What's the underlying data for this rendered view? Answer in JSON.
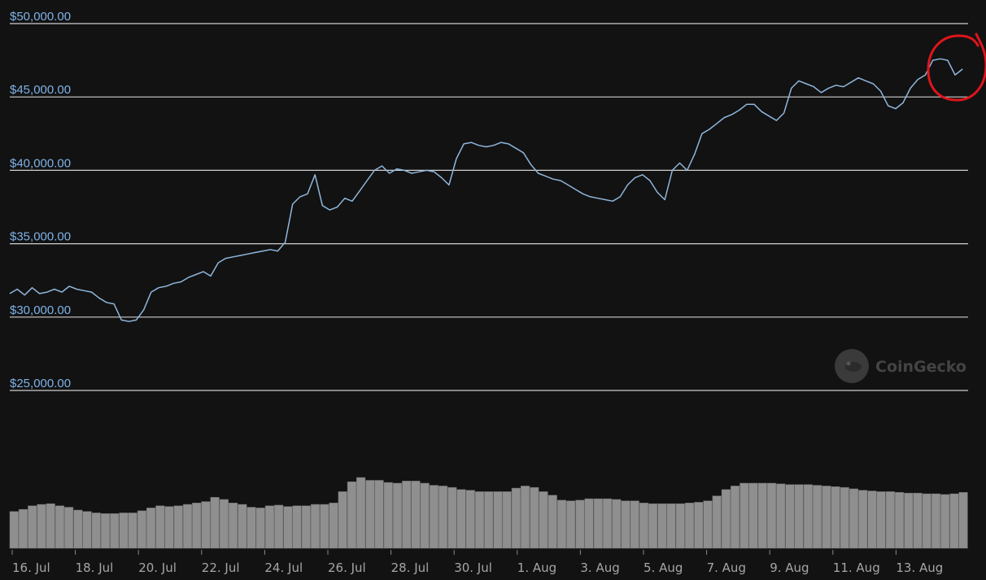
{
  "chart_data": {
    "type": "line",
    "title": "",
    "xlabel": "",
    "ylabel": "",
    "ylim": [
      23000,
      50000
    ],
    "y_ticks": [
      "$50,000.00",
      "$45,000.00",
      "$40,000.00",
      "$35,000.00",
      "$30,000.00",
      "$25,000.00"
    ],
    "y_tick_values": [
      50000,
      45000,
      40000,
      35000,
      30000,
      25000
    ],
    "x_ticks": [
      "16. Jul",
      "18. Jul",
      "20. Jul",
      "22. Jul",
      "24. Jul",
      "26. Jul",
      "28. Jul",
      "30. Jul",
      "1. Aug",
      "3. Aug",
      "5. Aug",
      "7. Aug",
      "9. Aug",
      "11. Aug",
      "13. Aug"
    ],
    "grid": true,
    "x_unit": "days since 15 Jul",
    "series": [
      {
        "color": "#8fb6dc",
        "points": [
          [
            0.0,
            31600
          ],
          [
            0.3,
            31900
          ],
          [
            0.6,
            31500
          ],
          [
            0.9,
            32000
          ],
          [
            1.2,
            31600
          ],
          [
            1.5,
            31700
          ],
          [
            1.8,
            31900
          ],
          [
            2.1,
            31700
          ],
          [
            2.4,
            32100
          ],
          [
            2.7,
            31900
          ],
          [
            3.0,
            31800
          ],
          [
            3.3,
            31700
          ],
          [
            3.6,
            31300
          ],
          [
            3.9,
            31000
          ],
          [
            4.2,
            30900
          ],
          [
            4.5,
            29800
          ],
          [
            4.8,
            29700
          ],
          [
            5.1,
            29800
          ],
          [
            5.4,
            30500
          ],
          [
            5.7,
            31700
          ],
          [
            6.0,
            32000
          ],
          [
            6.3,
            32100
          ],
          [
            6.6,
            32300
          ],
          [
            6.9,
            32400
          ],
          [
            7.2,
            32700
          ],
          [
            7.5,
            32900
          ],
          [
            7.8,
            33100
          ],
          [
            8.1,
            32800
          ],
          [
            8.4,
            33700
          ],
          [
            8.7,
            34000
          ],
          [
            9.0,
            34100
          ],
          [
            9.3,
            34200
          ],
          [
            9.6,
            34300
          ],
          [
            9.9,
            34400
          ],
          [
            10.2,
            34500
          ],
          [
            10.5,
            34600
          ],
          [
            10.8,
            34500
          ],
          [
            11.1,
            35100
          ],
          [
            11.4,
            37700
          ],
          [
            11.7,
            38200
          ],
          [
            12.0,
            38400
          ],
          [
            12.3,
            39700
          ],
          [
            12.6,
            37600
          ],
          [
            12.9,
            37300
          ],
          [
            13.2,
            37500
          ],
          [
            13.5,
            38100
          ],
          [
            13.8,
            37900
          ],
          [
            14.1,
            38600
          ],
          [
            14.4,
            39300
          ],
          [
            14.7,
            40000
          ],
          [
            15.0,
            40300
          ],
          [
            15.3,
            39800
          ],
          [
            15.6,
            40100
          ],
          [
            15.9,
            40000
          ],
          [
            16.2,
            39800
          ],
          [
            16.5,
            39900
          ],
          [
            16.8,
            40000
          ],
          [
            17.1,
            39900
          ],
          [
            17.4,
            39500
          ],
          [
            17.7,
            39000
          ],
          [
            18.0,
            40800
          ],
          [
            18.3,
            41800
          ],
          [
            18.6,
            41900
          ],
          [
            18.9,
            41700
          ],
          [
            19.2,
            41600
          ],
          [
            19.5,
            41700
          ],
          [
            19.8,
            41900
          ],
          [
            20.1,
            41800
          ],
          [
            20.4,
            41500
          ],
          [
            20.7,
            41200
          ],
          [
            21.0,
            40400
          ],
          [
            21.3,
            39800
          ],
          [
            21.6,
            39600
          ],
          [
            21.9,
            39400
          ],
          [
            22.2,
            39300
          ],
          [
            22.5,
            39000
          ],
          [
            22.8,
            38700
          ],
          [
            23.1,
            38400
          ],
          [
            23.4,
            38200
          ],
          [
            23.7,
            38100
          ],
          [
            24.0,
            38000
          ],
          [
            24.3,
            37900
          ],
          [
            24.6,
            38200
          ],
          [
            24.9,
            39000
          ],
          [
            25.2,
            39500
          ],
          [
            25.5,
            39700
          ],
          [
            25.8,
            39300
          ],
          [
            26.1,
            38500
          ],
          [
            26.4,
            38000
          ],
          [
            26.7,
            40000
          ],
          [
            27.0,
            40500
          ],
          [
            27.3,
            40000
          ],
          [
            27.6,
            41100
          ],
          [
            27.9,
            42500
          ],
          [
            28.2,
            42800
          ],
          [
            28.5,
            43200
          ],
          [
            28.8,
            43600
          ],
          [
            29.1,
            43800
          ],
          [
            29.4,
            44100
          ],
          [
            29.7,
            44500
          ],
          [
            30.0,
            44500
          ],
          [
            30.3,
            44000
          ],
          [
            30.6,
            43700
          ],
          [
            30.9,
            43400
          ],
          [
            31.2,
            43900
          ],
          [
            31.5,
            45600
          ],
          [
            31.8,
            46100
          ],
          [
            32.1,
            45900
          ],
          [
            32.4,
            45700
          ],
          [
            32.7,
            45300
          ],
          [
            33.0,
            45600
          ],
          [
            33.3,
            45800
          ],
          [
            33.6,
            45700
          ],
          [
            33.9,
            46000
          ],
          [
            34.2,
            46300
          ],
          [
            34.5,
            46100
          ],
          [
            34.8,
            45900
          ],
          [
            35.1,
            45400
          ],
          [
            35.4,
            44400
          ],
          [
            35.7,
            44200
          ],
          [
            36.0,
            44600
          ],
          [
            36.3,
            45600
          ],
          [
            36.6,
            46200
          ],
          [
            36.9,
            46500
          ],
          [
            37.2,
            47500
          ],
          [
            37.5,
            47600
          ],
          [
            37.8,
            47500
          ],
          [
            38.1,
            46500
          ],
          [
            38.4,
            46900
          ]
        ]
      }
    ],
    "volume": [
      0.52,
      0.55,
      0.6,
      0.62,
      0.63,
      0.6,
      0.58,
      0.54,
      0.52,
      0.5,
      0.49,
      0.49,
      0.5,
      0.5,
      0.53,
      0.57,
      0.6,
      0.59,
      0.6,
      0.62,
      0.64,
      0.66,
      0.72,
      0.69,
      0.64,
      0.62,
      0.58,
      0.57,
      0.6,
      0.61,
      0.59,
      0.6,
      0.6,
      0.62,
      0.62,
      0.64,
      0.8,
      0.94,
      1.0,
      0.96,
      0.96,
      0.93,
      0.92,
      0.95,
      0.95,
      0.92,
      0.89,
      0.88,
      0.86,
      0.83,
      0.82,
      0.8,
      0.8,
      0.8,
      0.8,
      0.85,
      0.88,
      0.86,
      0.8,
      0.75,
      0.68,
      0.67,
      0.68,
      0.7,
      0.7,
      0.7,
      0.69,
      0.67,
      0.67,
      0.64,
      0.63,
      0.63,
      0.63,
      0.63,
      0.64,
      0.65,
      0.67,
      0.74,
      0.83,
      0.88,
      0.92,
      0.92,
      0.92,
      0.92,
      0.91,
      0.9,
      0.9,
      0.9,
      0.89,
      0.88,
      0.87,
      0.86,
      0.84,
      0.82,
      0.81,
      0.8,
      0.8,
      0.79,
      0.78,
      0.78,
      0.77,
      0.77,
      0.76,
      0.77,
      0.79
    ]
  },
  "watermark": {
    "text": "CoinGecko",
    "icon": "coingecko-gecko-icon"
  },
  "annotation": {
    "shape": "hand-drawn circle",
    "color": "#e0151b",
    "target": "latest price peak"
  }
}
